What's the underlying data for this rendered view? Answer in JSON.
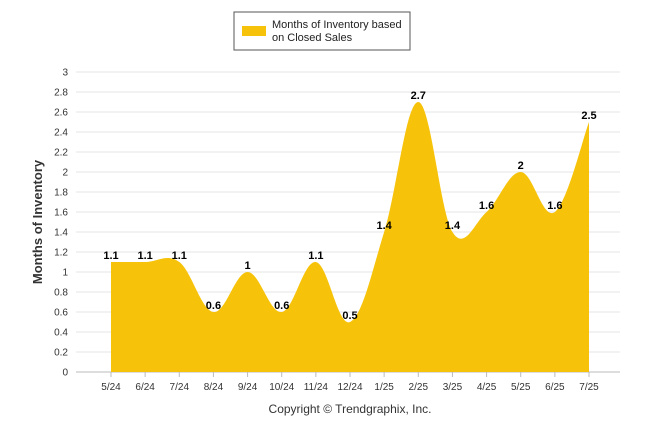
{
  "chart_data": {
    "type": "area",
    "categories": [
      "5/24",
      "6/24",
      "7/24",
      "8/24",
      "9/24",
      "10/24",
      "11/24",
      "12/24",
      "1/25",
      "2/25",
      "3/25",
      "4/25",
      "5/25",
      "6/25",
      "7/25"
    ],
    "series": [
      {
        "name": "Months of Inventory based on Closed Sales",
        "values": [
          1.1,
          1.1,
          1.1,
          0.6,
          1,
          0.6,
          1.1,
          0.5,
          1.4,
          2.7,
          1.4,
          1.6,
          2,
          1.6,
          2.5
        ],
        "color": "#F7C30A"
      }
    ],
    "data_labels": [
      "1.1",
      "1.1",
      "1.1",
      "0.6",
      "1",
      "0.6",
      "1.1",
      "0.5",
      "1.4",
      "2.7",
      "1.4",
      "1.6",
      "2",
      "1.6",
      "2.5"
    ],
    "ylabel": "Months of Inventory",
    "xlabel": "",
    "ylim": [
      0,
      3
    ],
    "yticks": [
      "0",
      "0.2",
      "0.4",
      "0.6",
      "0.8",
      "1",
      "1.2",
      "1.4",
      "1.6",
      "1.8",
      "2",
      "2.2",
      "2.4",
      "2.6",
      "2.8",
      "3"
    ],
    "grid": true,
    "legend_position": "top-center"
  },
  "legend": {
    "line1": "Months of Inventory based",
    "line2": "on Closed Sales"
  },
  "footer": "Copyright © Trendgraphix, Inc."
}
